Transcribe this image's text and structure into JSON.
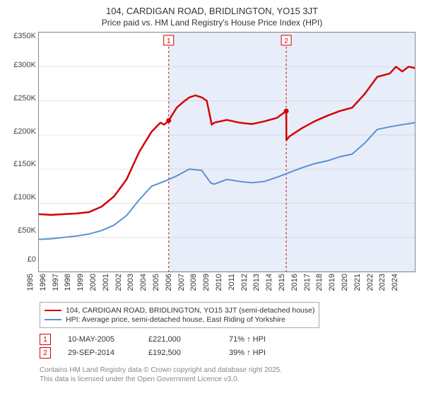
{
  "title": "104, CARDIGAN ROAD, BRIDLINGTON, YO15 3JT",
  "subtitle": "Price paid vs. HM Land Registry's House Price Index (HPI)",
  "chart": {
    "type": "line",
    "background_color": "#ffffff",
    "grid_color": "#e6e6e6",
    "axis_color": "#888888",
    "y": {
      "min": 0,
      "max": 350000,
      "step": 50000,
      "ticks": [
        "£350K",
        "£300K",
        "£250K",
        "£200K",
        "£150K",
        "£100K",
        "£50K",
        "£0"
      ]
    },
    "x": {
      "min": 1995,
      "max": 2025,
      "step": 1,
      "ticks": [
        "1995",
        "1996",
        "1997",
        "1998",
        "1999",
        "2000",
        "2001",
        "2002",
        "2003",
        "2004",
        "2005",
        "2006",
        "2007",
        "2008",
        "2009",
        "2010",
        "2011",
        "2012",
        "2013",
        "2014",
        "2015",
        "2016",
        "2017",
        "2018",
        "2019",
        "2020",
        "2021",
        "2022",
        "2023",
        "2024"
      ]
    },
    "series": [
      {
        "id": "property",
        "label": "104, CARDIGAN ROAD, BRIDLINGTON, YO15 3JT (semi-detached house)",
        "color": "#d40000",
        "line_width": 2.5,
        "data": [
          [
            1995,
            84000
          ],
          [
            1996,
            83000
          ],
          [
            1997,
            84000
          ],
          [
            1998,
            85000
          ],
          [
            1999,
            87000
          ],
          [
            2000,
            95000
          ],
          [
            2001,
            110000
          ],
          [
            2002,
            135000
          ],
          [
            2003,
            175000
          ],
          [
            2004,
            205000
          ],
          [
            2004.7,
            218000
          ],
          [
            2005,
            215000
          ],
          [
            2005.36,
            221000
          ],
          [
            2006,
            240000
          ],
          [
            2006.5,
            248000
          ],
          [
            2007,
            255000
          ],
          [
            2007.5,
            258000
          ],
          [
            2008,
            255000
          ],
          [
            2008.4,
            250000
          ],
          [
            2008.8,
            215000
          ],
          [
            2009,
            218000
          ],
          [
            2010,
            222000
          ],
          [
            2011,
            218000
          ],
          [
            2012,
            216000
          ],
          [
            2013,
            220000
          ],
          [
            2014,
            225000
          ],
          [
            2014.74,
            235000
          ],
          [
            2014.75,
            192500
          ],
          [
            2015,
            198000
          ],
          [
            2016,
            210000
          ],
          [
            2017,
            220000
          ],
          [
            2018,
            228000
          ],
          [
            2019,
            235000
          ],
          [
            2020,
            240000
          ],
          [
            2021,
            260000
          ],
          [
            2022,
            285000
          ],
          [
            2023,
            290000
          ],
          [
            2023.5,
            300000
          ],
          [
            2024,
            293000
          ],
          [
            2024.5,
            300000
          ],
          [
            2025,
            298000
          ]
        ]
      },
      {
        "id": "hpi",
        "label": "HPI: Average price, semi-detached house, East Riding of Yorkshire",
        "color": "#5b8fd6",
        "line_width": 2,
        "data": [
          [
            1995,
            47000
          ],
          [
            1996,
            48000
          ],
          [
            1997,
            50000
          ],
          [
            1998,
            52000
          ],
          [
            1999,
            55000
          ],
          [
            2000,
            60000
          ],
          [
            2001,
            68000
          ],
          [
            2002,
            82000
          ],
          [
            2003,
            105000
          ],
          [
            2004,
            125000
          ],
          [
            2005,
            132000
          ],
          [
            2006,
            140000
          ],
          [
            2007,
            150000
          ],
          [
            2008,
            148000
          ],
          [
            2008.7,
            130000
          ],
          [
            2009,
            128000
          ],
          [
            2010,
            135000
          ],
          [
            2011,
            132000
          ],
          [
            2012,
            130000
          ],
          [
            2013,
            132000
          ],
          [
            2014,
            138000
          ],
          [
            2015,
            145000
          ],
          [
            2016,
            152000
          ],
          [
            2017,
            158000
          ],
          [
            2018,
            162000
          ],
          [
            2019,
            168000
          ],
          [
            2020,
            172000
          ],
          [
            2021,
            188000
          ],
          [
            2022,
            208000
          ],
          [
            2023,
            212000
          ],
          [
            2024,
            215000
          ],
          [
            2025,
            218000
          ]
        ]
      }
    ],
    "transactions": [
      {
        "n": "1",
        "x": 2005.36,
        "date": "10-MAY-2005",
        "price": "£221,000",
        "hpi_delta": "71% ↑ HPI",
        "marker_color": "#d40000",
        "band_color": "rgba(120,160,220,0.18)",
        "band_start": 2005.36,
        "band_end": 2014.74
      },
      {
        "n": "2",
        "x": 2014.74,
        "date": "29-SEP-2014",
        "price": "£192,500",
        "hpi_delta": "39% ↑ HPI",
        "marker_color": "#d40000",
        "band_color": "rgba(120,160,220,0.18)",
        "band_start": 2014.74,
        "band_end": 2025
      }
    ]
  },
  "footer": {
    "line1": "Contains HM Land Registry data © Crown copyright and database right 2025.",
    "line2": "This data is licensed under the Open Government Licence v3.0."
  }
}
